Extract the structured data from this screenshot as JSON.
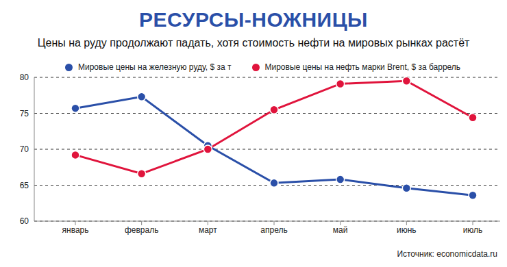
{
  "chart_data": {
    "type": "line",
    "title": "РЕСУРСЫ-НОЖНИЦЫ",
    "subtitle": "Цены на руду продолжают падать, хотя стоимость нефти на мировых рынках растёт",
    "source": "Источник: economicdata.ru",
    "categories": [
      "январь",
      "февраль",
      "март",
      "апрель",
      "май",
      "июнь",
      "июль"
    ],
    "series": [
      {
        "name": "Мировые цены на железную руду, $ за т",
        "color": "#2a4fa8",
        "values": [
          75.7,
          77.3,
          70.5,
          65.3,
          65.8,
          64.6,
          63.6
        ]
      },
      {
        "name": "Мировые цены на нефть марки Brent, $ за баррель",
        "color": "#e0143c",
        "values": [
          69.2,
          66.6,
          70.0,
          75.5,
          79.1,
          79.5,
          74.4
        ]
      }
    ],
    "ylim": [
      60,
      80
    ],
    "yticks": [
      60,
      65,
      70,
      75,
      80
    ],
    "grid": true,
    "marker": "circle"
  }
}
